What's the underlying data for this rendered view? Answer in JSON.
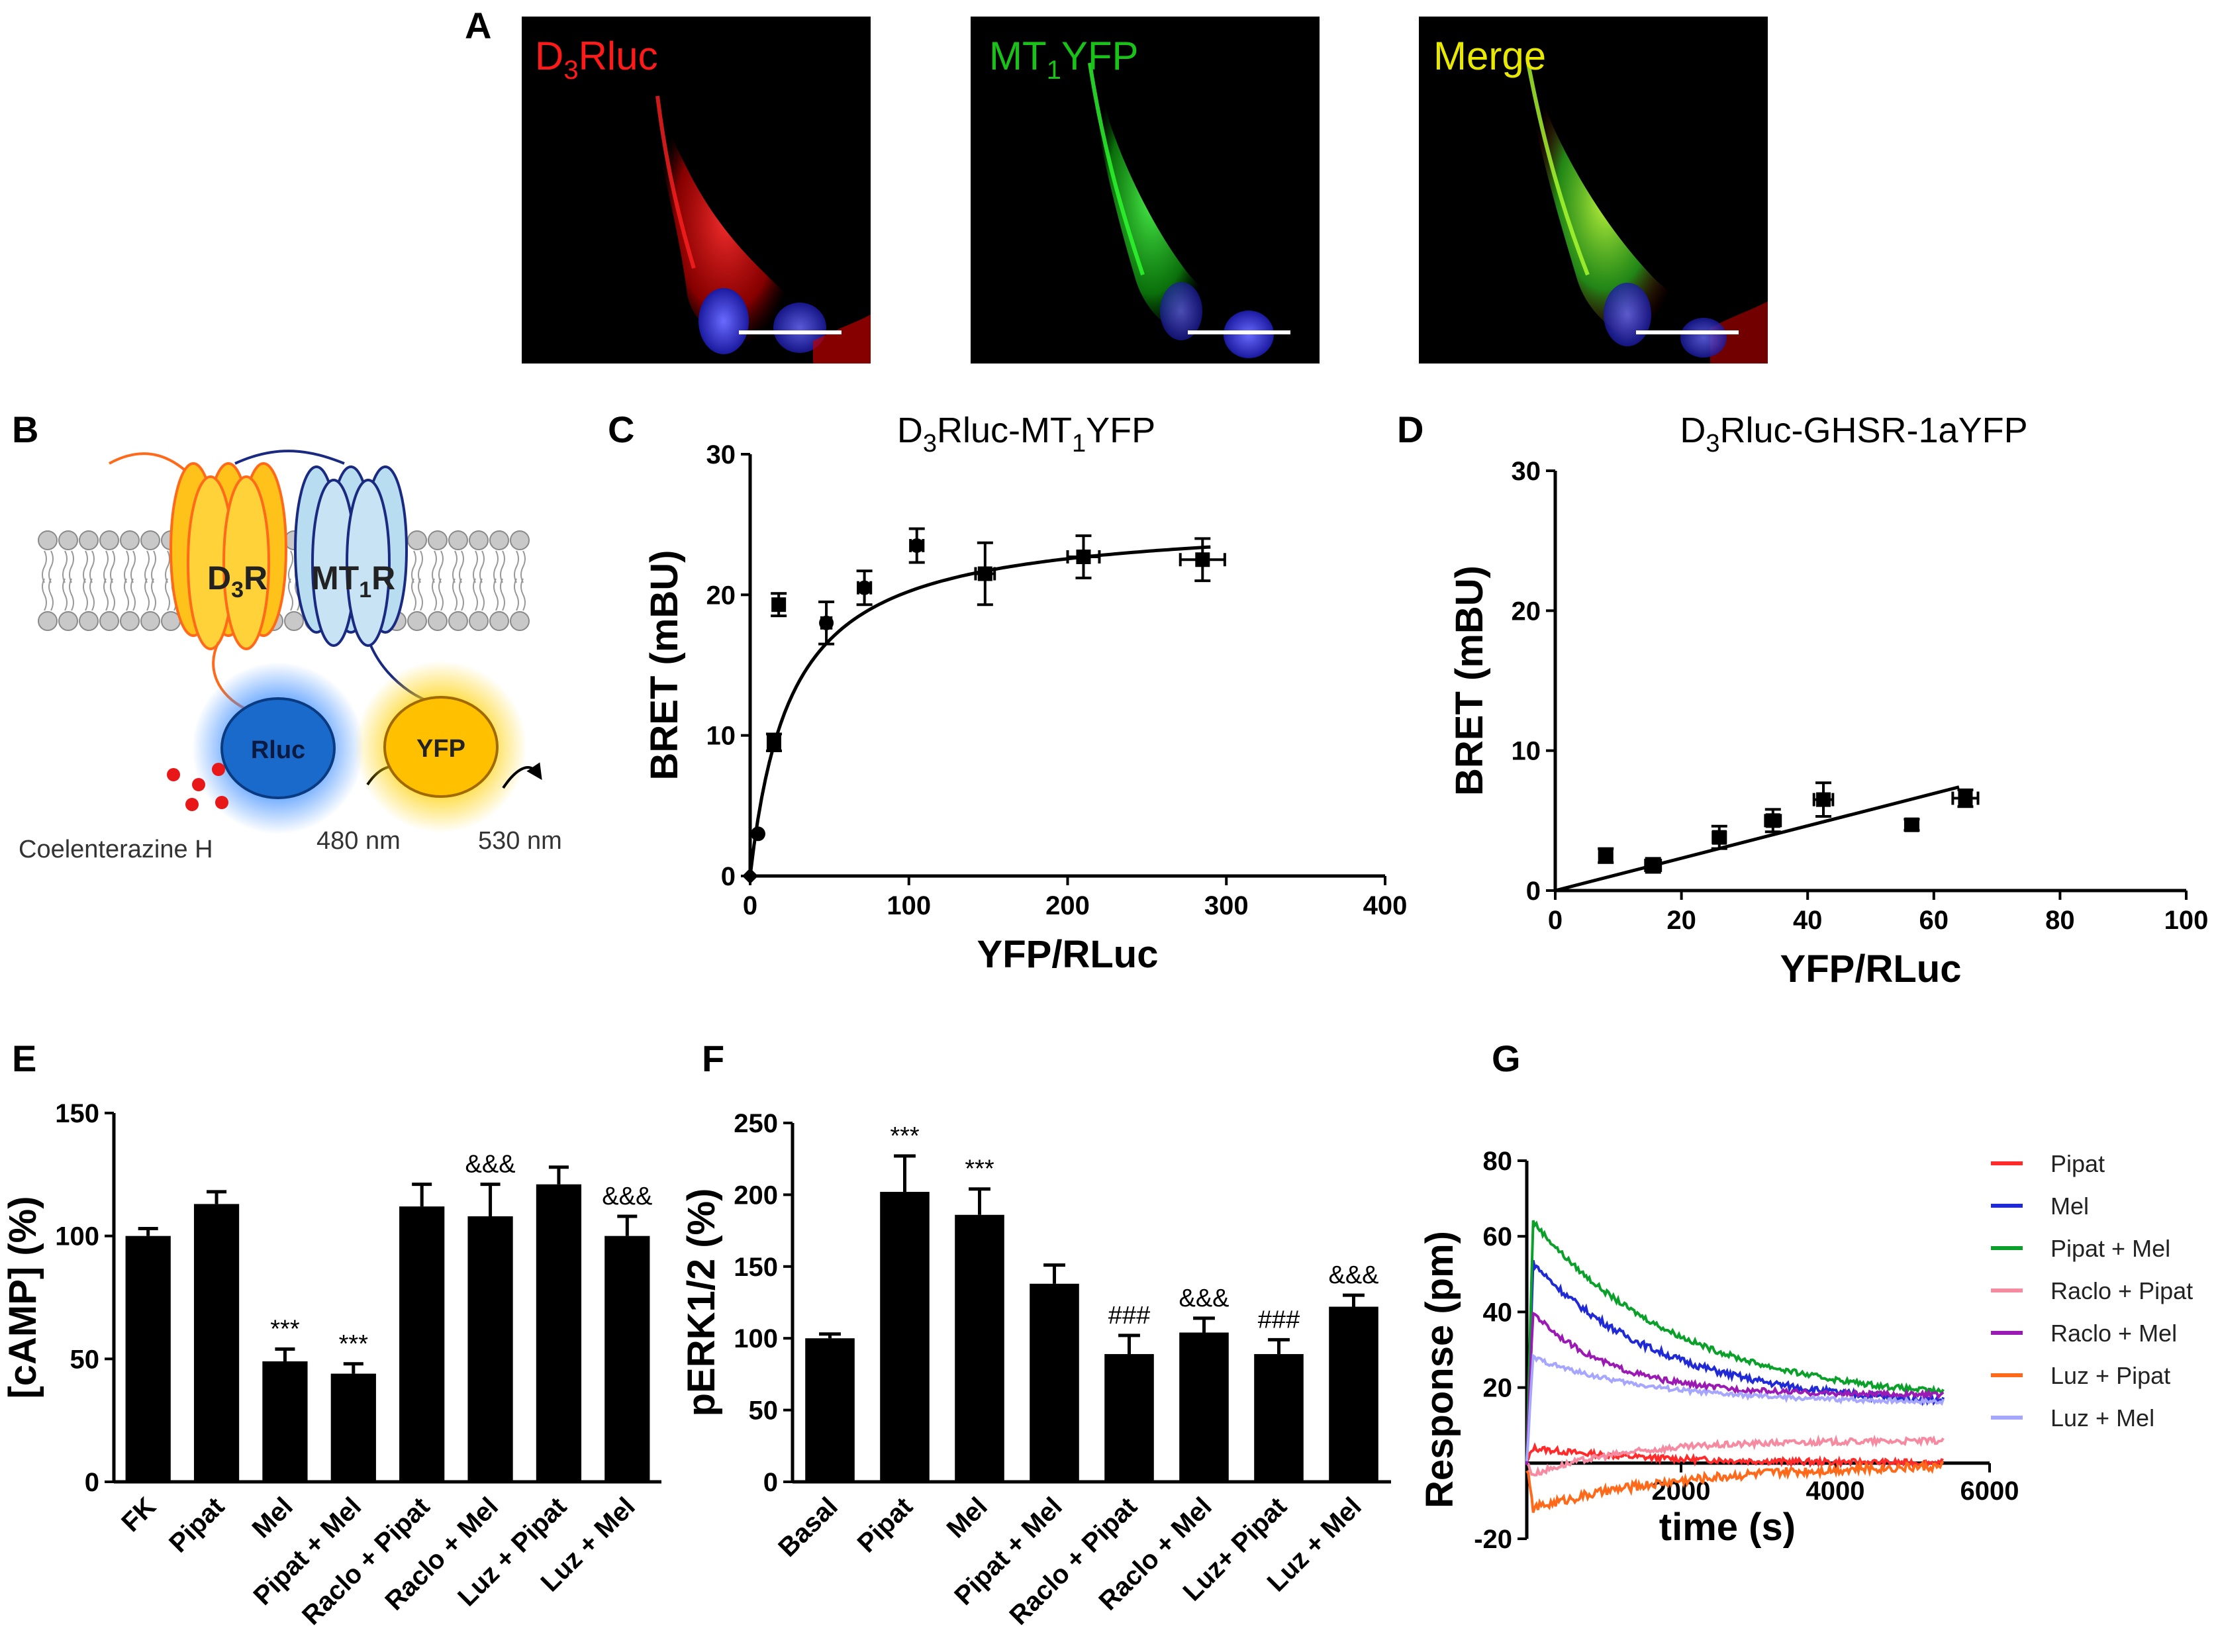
{
  "panels": {
    "A": {
      "letter": "A",
      "images": [
        {
          "label_main": "D",
          "label_sub": "3",
          "label_rest": "Rluc",
          "color": "#ff1a1a",
          "channel": "red"
        },
        {
          "label_main": "MT",
          "label_sub": "1",
          "label_rest": "YFP",
          "color": "#19c219",
          "channel": "green"
        },
        {
          "label_main": "Merge",
          "label_sub": "",
          "label_rest": "",
          "color": "#e8e800",
          "channel": "merge"
        }
      ]
    },
    "B": {
      "letter": "B",
      "receptor1": {
        "main": "D",
        "sub": "3",
        "rest": "R"
      },
      "receptor2": {
        "main": "MT",
        "sub": "1",
        "rest": "R"
      },
      "donor": "Rluc",
      "acceptor": "YFP",
      "substrate": "Coelenterazine H",
      "wavelength1": "480 nm",
      "wavelength2": "530 nm"
    },
    "C": {
      "letter": "C",
      "title_main": "D",
      "title_sub1": "3",
      "title_mid": "Rluc-MT",
      "title_sub2": "1",
      "title_rest": "YFP"
    },
    "D": {
      "letter": "D",
      "title_main": "D",
      "title_sub1": "3",
      "title_rest": "Rluc-GHSR-1aYFP"
    },
    "E": {
      "letter": "E"
    },
    "F": {
      "letter": "F"
    },
    "G": {
      "letter": "G"
    }
  },
  "chart_data": [
    {
      "id": "C",
      "type": "scatter",
      "title": "D3Rluc-MT1YFP",
      "xlabel": "YFP/RLuc",
      "ylabel": "BRET (mBU)",
      "xlim": [
        0,
        400
      ],
      "ylim": [
        0,
        30
      ],
      "xticks": [
        0,
        100,
        200,
        300,
        400
      ],
      "yticks": [
        0,
        10,
        20,
        30
      ],
      "points": [
        {
          "x": 0,
          "y": 0,
          "xerr": 0,
          "yerr": 0,
          "marker": "diamond"
        },
        {
          "x": 5,
          "y": 3,
          "xerr": 0,
          "yerr": 0,
          "marker": "circle"
        },
        {
          "x": 15,
          "y": 9.5,
          "xerr": 3,
          "yerr": 0.6,
          "marker": "square"
        },
        {
          "x": 18,
          "y": 19.3,
          "xerr": 3,
          "yerr": 0.8,
          "marker": "square"
        },
        {
          "x": 48,
          "y": 18,
          "xerr": 3,
          "yerr": 1.5,
          "marker": "circle"
        },
        {
          "x": 72,
          "y": 20.5,
          "xerr": 4,
          "yerr": 1.2,
          "marker": "circle"
        },
        {
          "x": 105,
          "y": 23.5,
          "xerr": 4,
          "yerr": 1.2,
          "marker": "circle"
        },
        {
          "x": 148,
          "y": 21.5,
          "xerr": 6,
          "yerr": 2.2,
          "marker": "square"
        },
        {
          "x": 210,
          "y": 22.7,
          "xerr": 10,
          "yerr": 1.5,
          "marker": "square"
        },
        {
          "x": 285,
          "y": 22.5,
          "xerr": 14,
          "yerr": 1.5,
          "marker": "square"
        }
      ],
      "fit": {
        "kind": "hyperbola",
        "bmax": 25.5,
        "kd": 26
      }
    },
    {
      "id": "D",
      "type": "scatter",
      "title": "D3Rluc-GHSR-1aYFP",
      "xlabel": "YFP/RLuc",
      "ylabel": "BRET (mBU)",
      "xlim": [
        0,
        100
      ],
      "ylim": [
        0,
        30
      ],
      "xticks": [
        0,
        20,
        40,
        60,
        80,
        100
      ],
      "yticks": [
        0,
        10,
        20,
        30
      ],
      "points": [
        {
          "x": 8,
          "y": 2.5,
          "xerr": 1,
          "yerr": 0.5
        },
        {
          "x": 15.5,
          "y": 1.8,
          "xerr": 1.2,
          "yerr": 0.5
        },
        {
          "x": 26,
          "y": 3.8,
          "xerr": 1,
          "yerr": 0.8
        },
        {
          "x": 34.5,
          "y": 5,
          "xerr": 1.2,
          "yerr": 0.8
        },
        {
          "x": 42.5,
          "y": 6.5,
          "xerr": 1.5,
          "yerr": 1.2
        },
        {
          "x": 56.5,
          "y": 4.7,
          "xerr": 1,
          "yerr": 0.4
        },
        {
          "x": 65,
          "y": 6.6,
          "xerr": 2,
          "yerr": 0.6
        }
      ],
      "fit": {
        "kind": "line",
        "x0": 0,
        "y0": 0,
        "x1": 64,
        "y1": 7.4
      }
    },
    {
      "id": "E",
      "type": "bar",
      "ylabel": "[cAMP] (%)",
      "ylim": [
        0,
        150
      ],
      "yticks": [
        0,
        50,
        100,
        150
      ],
      "categories": [
        "FK",
        "Pipat",
        "Mel",
        "Pipat + Mel",
        "Raclo + Pipat",
        "Raclo + Mel",
        "Luz + Pipat",
        "Luz + Mel"
      ],
      "values": [
        100,
        113,
        49,
        44,
        112,
        108,
        121,
        100
      ],
      "errors": [
        3,
        5,
        5,
        4,
        9,
        13,
        7,
        8
      ],
      "annotations": [
        "",
        "",
        "***",
        "***",
        "",
        "&&&",
        "",
        "&&&"
      ]
    },
    {
      "id": "F",
      "type": "bar",
      "ylabel": "pERK1/2 (%)",
      "ylim": [
        0,
        250
      ],
      "yticks": [
        0,
        50,
        100,
        150,
        200,
        250
      ],
      "categories": [
        "Basal",
        "Pipat",
        "Mel",
        "Pipat + Mel",
        "Raclo + Pipat",
        "Raclo + Mel",
        "Luz+ Pipat",
        "Luz + Mel"
      ],
      "values": [
        100,
        202,
        186,
        138,
        89,
        104,
        89,
        122
      ],
      "errors": [
        3,
        25,
        18,
        13,
        13,
        10,
        10,
        8
      ],
      "annotations": [
        "",
        "***",
        "***",
        "",
        "###",
        "&&&",
        "###",
        "&&&"
      ]
    },
    {
      "id": "G",
      "type": "line",
      "xlabel": "time (s)",
      "ylabel": "Response (pm)",
      "xlim": [
        0,
        6000
      ],
      "ylim": [
        -20,
        80
      ],
      "xticks": [
        2000,
        4000,
        6000
      ],
      "yticks": [
        -20,
        20,
        40,
        60,
        80
      ],
      "series": [
        {
          "name": "Pipat",
          "color": "#ff2a2a",
          "baseline": 0,
          "peak": 4,
          "plateau": 0,
          "tau": 1500,
          "noise": 0.8
        },
        {
          "name": "Mel",
          "color": "#1f2ad6",
          "baseline": 0,
          "peak": 53,
          "plateau": 15,
          "tau": 1700,
          "noise": 0.9
        },
        {
          "name": "Pipat + Mel",
          "color": "#0aa02a",
          "baseline": 0,
          "peak": 64,
          "plateau": 16,
          "tau": 1900,
          "noise": 0.7
        },
        {
          "name": "Raclo + Pipat",
          "color": "#f58aa0",
          "baseline": 0,
          "peak": -3,
          "plateau": 6,
          "tau": 1200,
          "noise": 0.8
        },
        {
          "name": "Raclo + Mel",
          "color": "#9a1ab3",
          "baseline": 0,
          "peak": 40,
          "plateau": 18,
          "tau": 1000,
          "noise": 0.7
        },
        {
          "name": "Luz + Pipat",
          "color": "#ff6a1a",
          "baseline": -1,
          "peak": -12,
          "plateau": 0,
          "tau": 2000,
          "noise": 1.2
        },
        {
          "name": "Luz + Mel",
          "color": "#a6a6ff",
          "baseline": 0,
          "peak": 28,
          "plateau": 16,
          "tau": 1500,
          "noise": 0.6
        }
      ]
    }
  ]
}
